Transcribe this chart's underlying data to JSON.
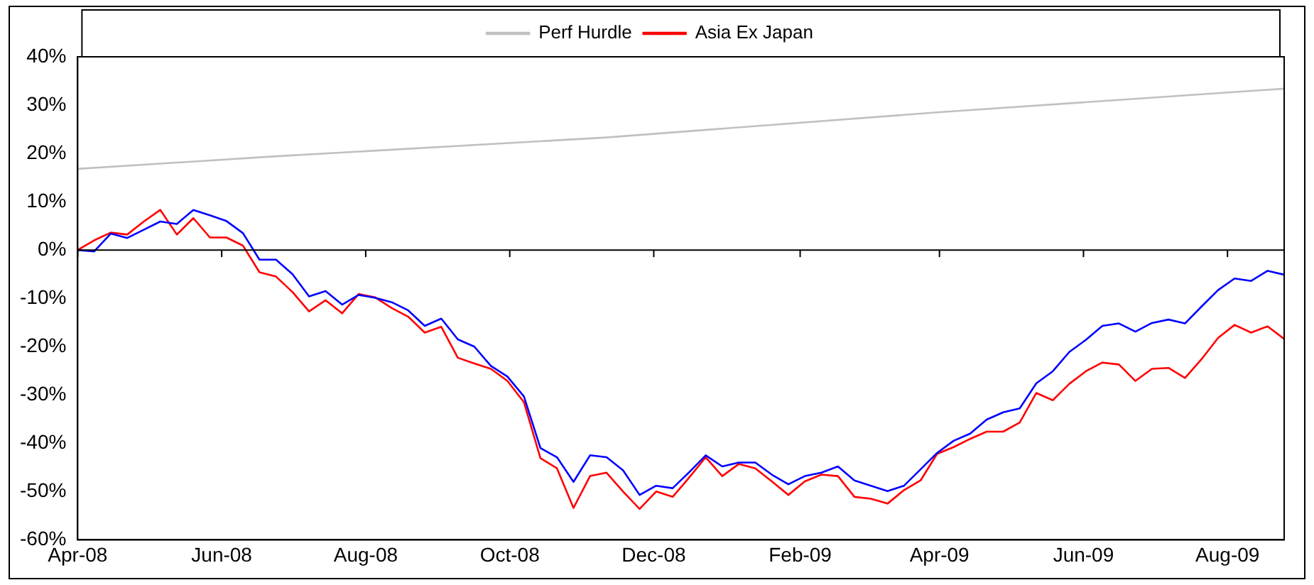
{
  "chart_data": {
    "type": "line",
    "legend": "top",
    "marker": "none",
    "line_style": "solid",
    "x": [
      "2008-04-01",
      "2008-04-08",
      "2008-04-15",
      "2008-04-22",
      "2008-04-29",
      "2008-05-06",
      "2008-05-13",
      "2008-05-20",
      "2008-05-27",
      "2008-06-03",
      "2008-06-10",
      "2008-06-17",
      "2008-06-24",
      "2008-07-01",
      "2008-07-08",
      "2008-07-15",
      "2008-07-22",
      "2008-07-29",
      "2008-08-05",
      "2008-08-12",
      "2008-08-19",
      "2008-08-26",
      "2008-09-02",
      "2008-09-09",
      "2008-09-16",
      "2008-09-23",
      "2008-09-30",
      "2008-10-07",
      "2008-10-14",
      "2008-10-21",
      "2008-10-28",
      "2008-11-04",
      "2008-11-11",
      "2008-11-18",
      "2008-11-25",
      "2008-12-02",
      "2008-12-09",
      "2008-12-16",
      "2008-12-23",
      "2008-12-30",
      "2009-01-06",
      "2009-01-13",
      "2009-01-20",
      "2009-01-27",
      "2009-02-03",
      "2009-02-10",
      "2009-02-17",
      "2009-02-24",
      "2009-03-03",
      "2009-03-10",
      "2009-03-17",
      "2009-03-24",
      "2009-03-31",
      "2009-04-07",
      "2009-04-14",
      "2009-04-21",
      "2009-04-28",
      "2009-05-05",
      "2009-05-12",
      "2009-05-19",
      "2009-05-26",
      "2009-06-02",
      "2009-06-09",
      "2009-06-16",
      "2009-06-23",
      "2009-06-30",
      "2009-07-07",
      "2009-07-14",
      "2009-07-21",
      "2009-07-28",
      "2009-08-04",
      "2009-08-11",
      "2009-08-18",
      "2009-08-25"
    ],
    "xlim": [
      "2008-04-01",
      "2009-08-25"
    ],
    "xticks": [
      {
        "value": "2008-04-01",
        "label": "Apr-08"
      },
      {
        "value": "2008-06-01",
        "label": "Jun-08"
      },
      {
        "value": "2008-08-01",
        "label": "Aug-08"
      },
      {
        "value": "2008-10-01",
        "label": "Oct-08"
      },
      {
        "value": "2008-12-01",
        "label": "Dec-08"
      },
      {
        "value": "2009-02-01",
        "label": "Feb-09"
      },
      {
        "value": "2009-04-01",
        "label": "Apr-09"
      },
      {
        "value": "2009-06-01",
        "label": "Jun-09"
      },
      {
        "value": "2009-08-01",
        "label": "Aug-09"
      }
    ],
    "ylim": [
      -60,
      40
    ],
    "yticks": [
      {
        "value": -60,
        "label": "-60%"
      },
      {
        "value": -50,
        "label": "-50%"
      },
      {
        "value": -40,
        "label": "-40%"
      },
      {
        "value": -30,
        "label": "-30%"
      },
      {
        "value": -20,
        "label": "-20%"
      },
      {
        "value": -10,
        "label": "-10%"
      },
      {
        "value": 0,
        "label": "0%"
      },
      {
        "value": 10,
        "label": "10%"
      },
      {
        "value": 20,
        "label": "20%"
      },
      {
        "value": 30,
        "label": "30%"
      },
      {
        "value": 40,
        "label": "40%"
      }
    ],
    "series": [
      {
        "color": "#0000ff",
        "values": [
          0,
          -0.3,
          3.4,
          2.5,
          4.2,
          5.9,
          5.4,
          8.3,
          7.2,
          6,
          3.5,
          -2,
          -2,
          -5,
          -9.6,
          -8.5,
          -11.3,
          -9.3,
          -9.9,
          -10.8,
          -12.5,
          -15.7,
          -14.2,
          -18.5,
          -20,
          -24,
          -26.2,
          -30.3,
          -41,
          -42.9,
          -48,
          -42.5,
          -42.9,
          -45.6,
          -50.7,
          -48.8,
          -49.3,
          -46,
          -42.5,
          -44.8,
          -44,
          -44,
          -46.5,
          -48.5,
          -46.8,
          -46.1,
          -44.8,
          -47.7,
          -48.8,
          -49.9,
          -48.8,
          -45.4,
          -42,
          -39.5,
          -38,
          -35.1,
          -33.6,
          -32.8,
          -27.6,
          -25.1,
          -21.1,
          -18.6,
          -15.7,
          -15.2,
          -16.9,
          -15.1,
          -14.4,
          -15.2,
          -11.7,
          -8.3,
          -5.9,
          -6.4,
          -4.3,
          -5.1
        ]
      },
      {
        "name": "Perf Hurdle",
        "color": "#c0c0c0",
        "x": [
          "2008-04-01",
          "2008-06-24",
          "2008-11-11",
          "2009-03-31",
          "2009-08-25"
        ],
        "values": [
          16.8,
          19.4,
          23.3,
          28.5,
          33.4
        ]
      },
      {
        "name": "Asia Ex Japan",
        "color": "#ff0000",
        "values": [
          0,
          2,
          3.6,
          3.2,
          5.9,
          8.3,
          3.2,
          6.6,
          2.6,
          2.6,
          0.9,
          -4.6,
          -5.5,
          -8.7,
          -12.7,
          -10.4,
          -13.1,
          -9.1,
          -9.8,
          -12,
          -13.8,
          -17.1,
          -15.9,
          -22.3,
          -23.5,
          -24.6,
          -27.1,
          -31.5,
          -43.1,
          -45.2,
          -53.4,
          -46.8,
          -46.1,
          -50,
          -53.6,
          -50,
          -51.1,
          -47.1,
          -42.9,
          -46.8,
          -44.3,
          -45.2,
          -47.9,
          -50.7,
          -47.9,
          -46.5,
          -46.8,
          -51.1,
          -51.5,
          -52.5,
          -49.7,
          -47.7,
          -42.2,
          -40.8,
          -39.1,
          -37.6,
          -37.6,
          -35.7,
          -29.6,
          -31.1,
          -27.7,
          -25.1,
          -23.3,
          -23.7,
          -27.1,
          -24.6,
          -24.4,
          -26.5,
          -22.6,
          -18.2,
          -15.5,
          -17.1,
          -15.8,
          -18.4
        ]
      }
    ]
  }
}
